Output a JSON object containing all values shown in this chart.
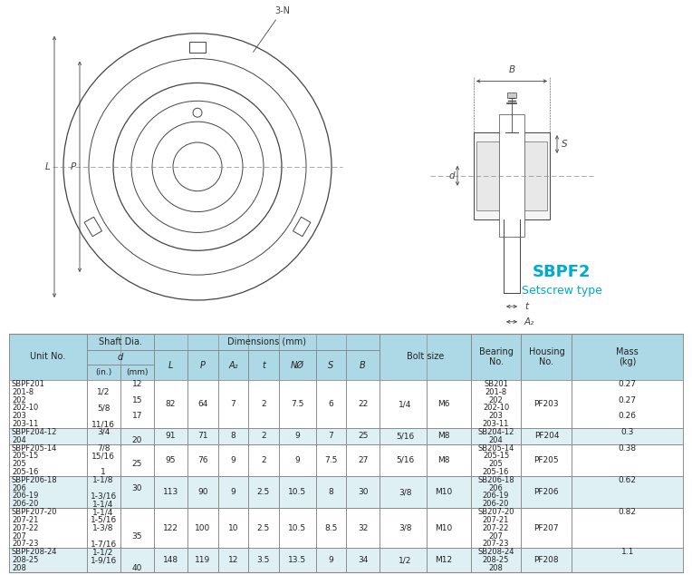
{
  "product_name": "SBPF2",
  "product_type": "Setscrew type",
  "header_bg": "#add8e6",
  "alt_row_bg": "#dff0f5",
  "white": "#ffffff",
  "border_color": "#888888",
  "text_color": "#222222",
  "cyan_color": "#00aacc",
  "line_color": "#444444",
  "rows": [
    {
      "unit": [
        "SBPF201",
        "201-8",
        "202",
        "202-10",
        "203",
        "203-11"
      ],
      "d_in": [
        "",
        "1/2",
        "",
        "5/8",
        "",
        "11/16"
      ],
      "d_mm": [
        "12",
        "",
        "15",
        "",
        "17",
        ""
      ],
      "L": "82",
      "P": "64",
      "A2": "7",
      "t": "2",
      "N": "7.5",
      "S": "6",
      "B": "22",
      "bolt_frac": "1/4",
      "bolt_m": "M6",
      "bearing": [
        "SB201",
        "201-8",
        "202",
        "202-10",
        "203",
        "203-11"
      ],
      "housing": "PF203",
      "mass": [
        "0.27",
        "",
        "0.27",
        "",
        "0.26",
        ""
      ],
      "n_sub": 6
    },
    {
      "unit": [
        "SBPF204-12",
        "204"
      ],
      "d_in": [
        "3/4",
        ""
      ],
      "d_mm": [
        "",
        "20"
      ],
      "L": "91",
      "P": "71",
      "A2": "8",
      "t": "2",
      "N": "9",
      "S": "7",
      "B": "25",
      "bolt_frac": "5/16",
      "bolt_m": "M8",
      "bearing": [
        "SB204-12",
        "204"
      ],
      "housing": "PF204",
      "mass": [
        "0.3",
        ""
      ],
      "n_sub": 2
    },
    {
      "unit": [
        "SBPF205-14",
        "205-15",
        "205",
        "205-16"
      ],
      "d_in": [
        "7/8",
        "15/16",
        "",
        "1"
      ],
      "d_mm": [
        "",
        "",
        "25",
        ""
      ],
      "L": "95",
      "P": "76",
      "A2": "9",
      "t": "2",
      "N": "9",
      "S": "7.5",
      "B": "27",
      "bolt_frac": "5/16",
      "bolt_m": "M8",
      "bearing": [
        "SB205-14",
        "205-15",
        "205",
        "205-16"
      ],
      "housing": "PF205",
      "mass": [
        "0.38",
        "",
        "",
        ""
      ],
      "n_sub": 4
    },
    {
      "unit": [
        "SBPF206-18",
        "206",
        "206-19",
        "206-20"
      ],
      "d_in": [
        "1-1/8",
        "",
        "1-3/16",
        "1-1/4"
      ],
      "d_mm": [
        "",
        "30",
        "",
        ""
      ],
      "L": "113",
      "P": "90",
      "A2": "9",
      "t": "2.5",
      "N": "10.5",
      "S": "8",
      "B": "30",
      "bolt_frac": "3/8",
      "bolt_m": "M10",
      "bearing": [
        "SB206-18",
        "206",
        "206-19",
        "206-20"
      ],
      "housing": "PF206",
      "mass": [
        "0.62",
        "",
        "",
        ""
      ],
      "n_sub": 4
    },
    {
      "unit": [
        "SBPF207-20",
        "207-21",
        "207-22",
        "207",
        "207-23"
      ],
      "d_in": [
        "1-1/4",
        "1-5/16",
        "1-3/8",
        "",
        "1-7/16"
      ],
      "d_mm": [
        "",
        "",
        "",
        "35",
        ""
      ],
      "L": "122",
      "P": "100",
      "A2": "10",
      "t": "2.5",
      "N": "10.5",
      "S": "8.5",
      "B": "32",
      "bolt_frac": "3/8",
      "bolt_m": "M10",
      "bearing": [
        "SB207-20",
        "207-21",
        "207-22",
        "207",
        "207-23"
      ],
      "housing": "PF207",
      "mass": [
        "0.82",
        "",
        "",
        "",
        ""
      ],
      "n_sub": 5
    },
    {
      "unit": [
        "SBPF208-24",
        "208-25",
        "208"
      ],
      "d_in": [
        "1-1/2",
        "1-9/16",
        ""
      ],
      "d_mm": [
        "",
        "",
        "40"
      ],
      "L": "148",
      "P": "119",
      "A2": "12",
      "t": "3.5",
      "N": "13.5",
      "S": "9",
      "B": "34",
      "bolt_frac": "1/2",
      "bolt_m": "M12",
      "bearing": [
        "SB208-24",
        "208-25",
        "208"
      ],
      "housing": "PF208",
      "mass": [
        "1.1",
        "",
        ""
      ],
      "n_sub": 3
    }
  ]
}
